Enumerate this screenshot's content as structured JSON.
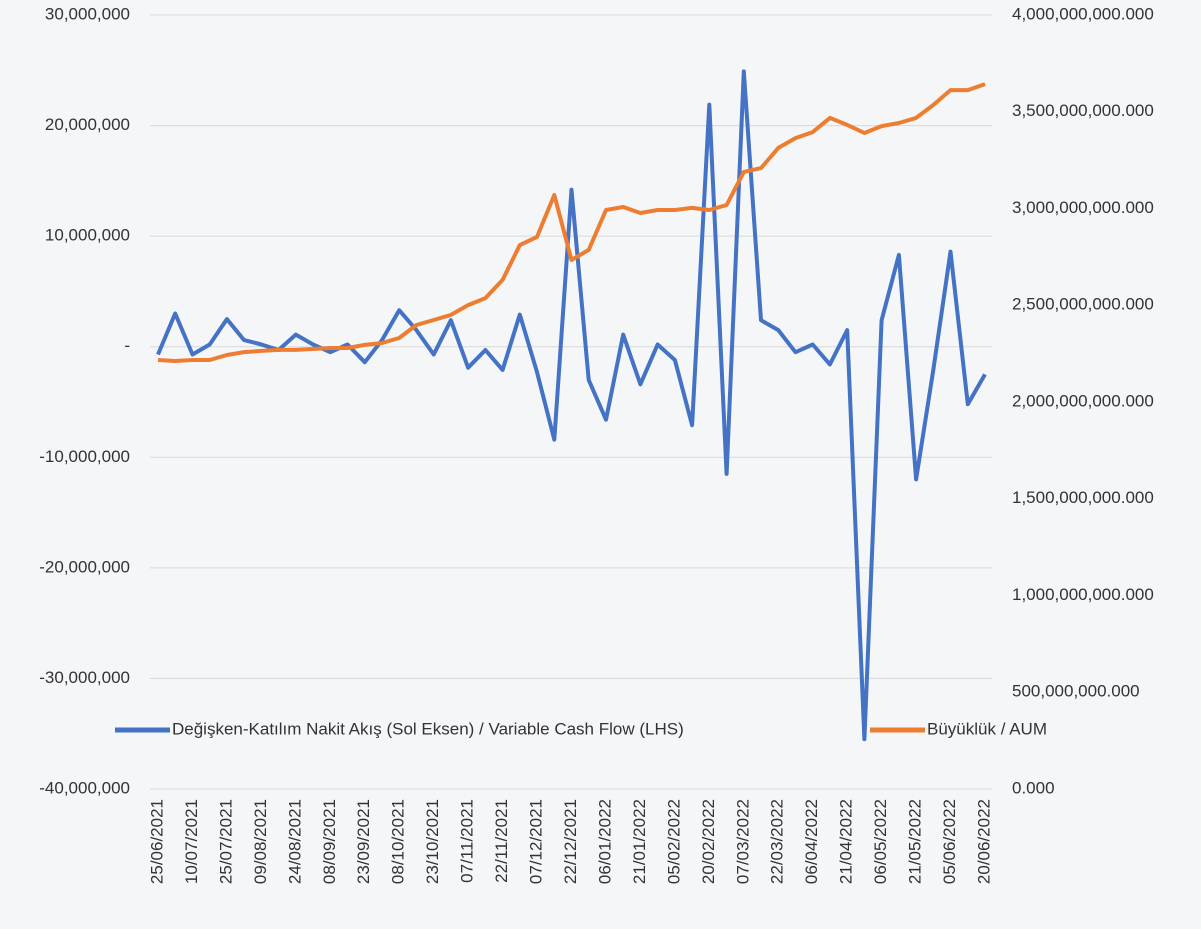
{
  "chart_data": {
    "type": "line",
    "categories": [
      "25/06/2021",
      null,
      "10/07/2021",
      null,
      "25/07/2021",
      null,
      "09/08/2021",
      null,
      "24/08/2021",
      null,
      "08/09/2021",
      null,
      "23/09/2021",
      null,
      "08/10/2021",
      null,
      "23/10/2021",
      null,
      "07/11/2021",
      null,
      "22/11/2021",
      null,
      "07/12/2021",
      null,
      "22/12/2021",
      null,
      "06/01/2022",
      null,
      "21/01/2022",
      null,
      "05/02/2022",
      null,
      "20/02/2022",
      null,
      "07/03/2022",
      null,
      "22/03/2022",
      null,
      "06/04/2022",
      null,
      "21/04/2022",
      null,
      "06/05/2022",
      null,
      "21/05/2022",
      null,
      "05/06/2022",
      null,
      "20/06/2022"
    ],
    "series": [
      {
        "name": "Değişken-Katılım Nakit Akış (Sol Eksen) / Variable Cash Flow (LHS)",
        "color": "#4472c4",
        "axis": "y",
        "values": [
          -700000,
          3000000,
          -700000,
          200000,
          2500000,
          600000,
          200000,
          -300000,
          1100000,
          200000,
          -500000,
          200000,
          -1400000,
          600000,
          3300000,
          1500000,
          -700000,
          2400000,
          -1900000,
          -300000,
          -2100000,
          2900000,
          -2300000,
          -8400000,
          14200000,
          -3000000,
          -6600000,
          1100000,
          -3400000,
          200000,
          -1200000,
          -7100000,
          21900000,
          -11500000,
          24900000,
          2400000,
          1500000,
          -500000,
          200000,
          -1600000,
          1500000,
          -35500000,
          2400000,
          8300000,
          -12000000,
          -2100000,
          8600000,
          -5200000,
          -2500000
        ]
      },
      {
        "name": "Büyüklük / AUM",
        "color": "#ed7d31",
        "axis": "y2",
        "values": [
          2217000000,
          2212000000,
          2217000000,
          2217000000,
          2243000000,
          2258000000,
          2264000000,
          2269000000,
          2269000000,
          2274000000,
          2279000000,
          2279000000,
          2295000000,
          2305000000,
          2331000000,
          2398000000,
          2424000000,
          2450000000,
          2501000000,
          2537000000,
          2631000000,
          2811000000,
          2853000000,
          3070000000,
          2734000000,
          2786000000,
          2992000000,
          3008000000,
          2977000000,
          2992000000,
          2992000000,
          3003000000,
          2992000000,
          3018000000,
          3189000000,
          3209000000,
          3313000000,
          3364000000,
          3395000000,
          3468000000,
          3432000000,
          3390000000,
          3426000000,
          3442000000,
          3468000000,
          3535000000,
          3612000000,
          3612000000,
          3643000000
        ]
      }
    ],
    "ylim": [
      -40000000,
      30000000
    ],
    "yticks": [
      {
        "value": -40000000,
        "label": "-40,000,000"
      },
      {
        "value": -30000000,
        "label": "-30,000,000"
      },
      {
        "value": -20000000,
        "label": "-20,000,000"
      },
      {
        "value": -10000000,
        "label": "-10,000,000"
      },
      {
        "value": 0,
        "label": "-"
      },
      {
        "value": 10000000,
        "label": "10,000,000"
      },
      {
        "value": 20000000,
        "label": "20,000,000"
      },
      {
        "value": 30000000,
        "label": "30,000,000"
      }
    ],
    "y2lim": [
      0,
      4000000000
    ],
    "y2ticks": [
      {
        "value": 0,
        "label": "0.000"
      },
      {
        "value": 500000000,
        "label": "500,000,000.000"
      },
      {
        "value": 1000000000,
        "label": "1,000,000,000.000"
      },
      {
        "value": 1500000000,
        "label": "1,500,000,000.000"
      },
      {
        "value": 2000000000,
        "label": "2,000,000,000.000"
      },
      {
        "value": 2500000000,
        "label": "2,500,000,000.000"
      },
      {
        "value": 3000000000,
        "label": "3,000,000,000.000"
      },
      {
        "value": 3500000000,
        "label": "3,500,000,000.000"
      },
      {
        "value": 4000000000,
        "label": "4,000,000,000.000"
      }
    ],
    "grid": true,
    "legend": "bottom"
  }
}
